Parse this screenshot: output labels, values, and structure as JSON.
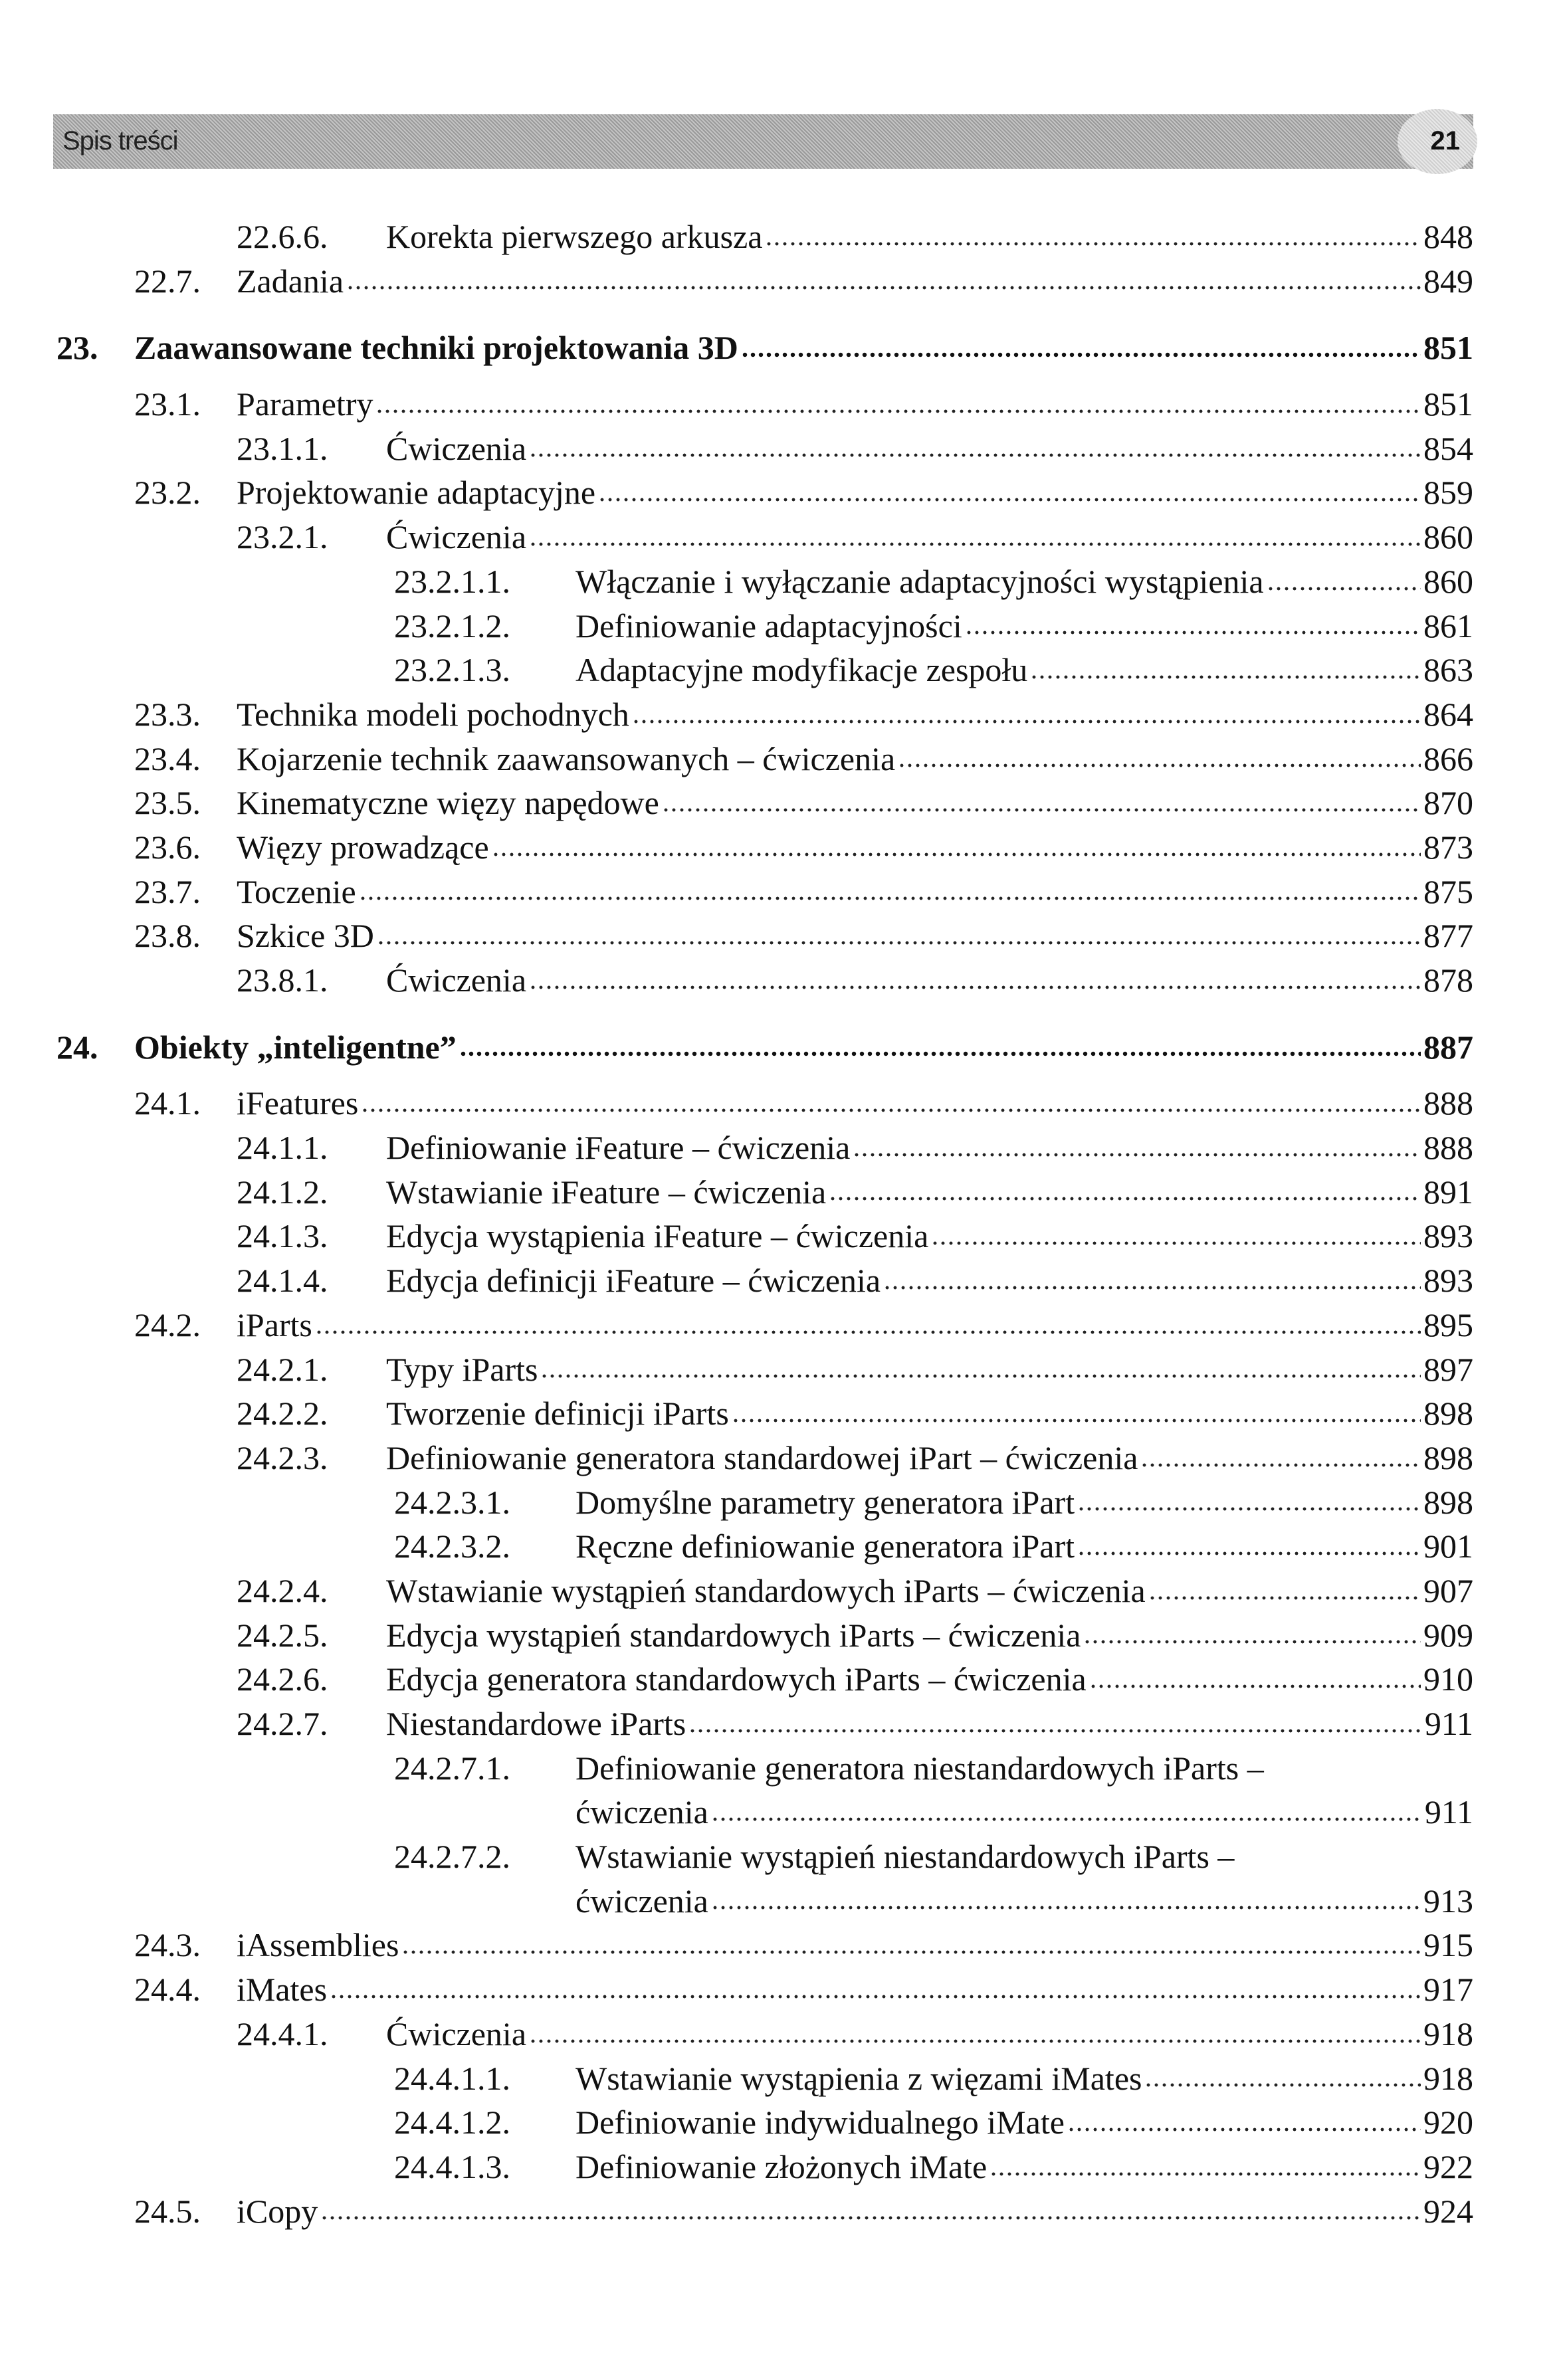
{
  "header": {
    "section_title": "Spis treści",
    "page_number": "21"
  },
  "entries": [
    {
      "level": 3,
      "num": "22.6.6.",
      "title": "Korekta pierwszego arkusza",
      "page": "848"
    },
    {
      "level": 2,
      "num": "22.7.",
      "title": "Zadania",
      "page": "849"
    },
    {
      "level": 1,
      "num": "23.",
      "title": "Zaawansowane techniki projektowania 3D",
      "page": "851"
    },
    {
      "level": 2,
      "num": "23.1.",
      "title": "Parametry",
      "page": "851"
    },
    {
      "level": 3,
      "num": "23.1.1.",
      "title": "Ćwiczenia",
      "page": "854"
    },
    {
      "level": 2,
      "num": "23.2.",
      "title": "Projektowanie adaptacyjne",
      "page": "859"
    },
    {
      "level": 3,
      "num": "23.2.1.",
      "title": "Ćwiczenia",
      "page": "860"
    },
    {
      "level": 4,
      "num": "23.2.1.1.",
      "title": "Włączanie i wyłączanie adaptacyjności wystąpienia",
      "page": "860"
    },
    {
      "level": 4,
      "num": "23.2.1.2.",
      "title": "Definiowanie adaptacyjności",
      "page": "861"
    },
    {
      "level": 4,
      "num": "23.2.1.3.",
      "title": "Adaptacyjne modyfikacje zespołu",
      "page": "863"
    },
    {
      "level": 2,
      "num": "23.3.",
      "title": "Technika modeli pochodnych",
      "page": "864"
    },
    {
      "level": 2,
      "num": "23.4.",
      "title": "Kojarzenie technik zaawansowanych – ćwiczenia",
      "page": "866"
    },
    {
      "level": 2,
      "num": "23.5.",
      "title": "Kinematyczne więzy napędowe",
      "page": "870"
    },
    {
      "level": 2,
      "num": "23.6.",
      "title": "Więzy prowadzące",
      "page": "873"
    },
    {
      "level": 2,
      "num": "23.7.",
      "title": "Toczenie",
      "page": "875"
    },
    {
      "level": 2,
      "num": "23.8.",
      "title": "Szkice 3D",
      "page": "877"
    },
    {
      "level": 3,
      "num": "23.8.1.",
      "title": "Ćwiczenia",
      "page": "878"
    },
    {
      "level": 1,
      "num": "24.",
      "title": "Obiekty „inteligentne”",
      "page": "887"
    },
    {
      "level": 2,
      "num": "24.1.",
      "title": "iFeatures",
      "page": "888"
    },
    {
      "level": 3,
      "num": "24.1.1.",
      "title": "Definiowanie iFeature – ćwiczenia",
      "page": "888"
    },
    {
      "level": 3,
      "num": "24.1.2.",
      "title": "Wstawianie iFeature – ćwiczenia",
      "page": "891"
    },
    {
      "level": 3,
      "num": "24.1.3.",
      "title": "Edycja wystąpienia iFeature – ćwiczenia",
      "page": "893"
    },
    {
      "level": 3,
      "num": "24.1.4.",
      "title": "Edycja definicji iFeature – ćwiczenia",
      "page": "893"
    },
    {
      "level": 2,
      "num": "24.2.",
      "title": "iParts",
      "page": "895"
    },
    {
      "level": 3,
      "num": "24.2.1.",
      "title": "Typy iParts",
      "page": "897"
    },
    {
      "level": 3,
      "num": "24.2.2.",
      "title": "Tworzenie definicji iParts",
      "page": "898"
    },
    {
      "level": 3,
      "num": "24.2.3.",
      "title": "Definiowanie generatora standardowej iPart – ćwiczenia",
      "page": "898"
    },
    {
      "level": 4,
      "num": "24.2.3.1.",
      "title": "Domyślne parametry generatora iPart",
      "page": "898"
    },
    {
      "level": 4,
      "num": "24.2.3.2.",
      "title": "Ręczne definiowanie generatora iPart",
      "page": "901"
    },
    {
      "level": 3,
      "num": "24.2.4.",
      "title": "Wstawianie wystąpień standardowych iParts – ćwiczenia",
      "page": "907"
    },
    {
      "level": 3,
      "num": "24.2.5.",
      "title": "Edycja wystąpień standardowych iParts – ćwiczenia",
      "page": "909"
    },
    {
      "level": 3,
      "num": "24.2.6.",
      "title": "Edycja generatora standardowych iParts – ćwiczenia",
      "page": "910"
    },
    {
      "level": 3,
      "num": "24.2.7.",
      "title": "Niestandardowe iParts",
      "page": "911"
    },
    {
      "level": 4,
      "num": "24.2.7.1.",
      "title": "Definiowanie generatora niestandardowych iParts –",
      "title_cont": "ćwiczenia",
      "page": "911"
    },
    {
      "level": 4,
      "num": "24.2.7.2.",
      "title": "Wstawianie wystąpień niestandardowych iParts –",
      "title_cont": "ćwiczenia",
      "page": "913"
    },
    {
      "level": 2,
      "num": "24.3.",
      "title": "iAssemblies",
      "page": "915"
    },
    {
      "level": 2,
      "num": "24.4.",
      "title": "iMates",
      "page": "917"
    },
    {
      "level": 3,
      "num": "24.4.1.",
      "title": "Ćwiczenia",
      "page": "918"
    },
    {
      "level": 4,
      "num": "24.4.1.1.",
      "title": "Wstawianie wystąpienia z więzami iMates",
      "page": "918"
    },
    {
      "level": 4,
      "num": "24.4.1.2.",
      "title": "Definiowanie indywidualnego iMate",
      "page": "920"
    },
    {
      "level": 4,
      "num": "24.4.1.3.",
      "title": "Definiowanie złożonych iMate",
      "page": "922"
    },
    {
      "level": 2,
      "num": "24.5.",
      "title": "iCopy",
      "page": "924"
    }
  ]
}
